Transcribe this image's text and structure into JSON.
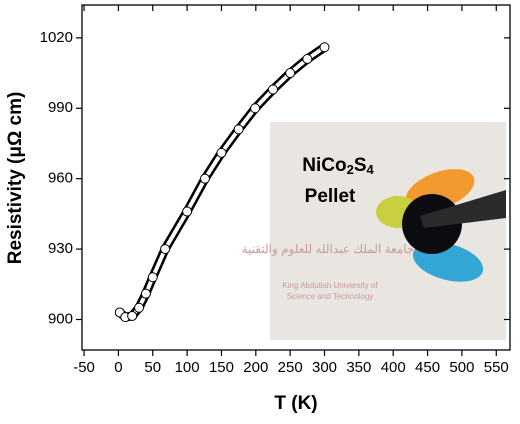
{
  "chart_data": {
    "type": "scatter",
    "x_label": "T (K)",
    "y_label": "Resistivity (μΩ cm)",
    "xlim": [
      -53,
      570
    ],
    "ylim": [
      887,
      1034
    ],
    "xticks": [
      -50,
      0,
      50,
      100,
      150,
      200,
      250,
      300,
      350,
      400,
      450,
      500,
      550
    ],
    "yticks": [
      900,
      930,
      960,
      990,
      1020
    ],
    "series": [
      {
        "color": "#000000",
        "x": [
          2,
          10,
          20,
          30,
          40,
          50,
          68,
          100,
          126,
          150,
          175,
          199,
          225,
          250,
          275,
          300
        ],
        "values": [
          903,
          901,
          901.5,
          905,
          911,
          918,
          930,
          946,
          960,
          971,
          981,
          990,
          998,
          1005,
          1011,
          1016
        ]
      }
    ]
  },
  "inset": {
    "formula_parts": [
      "NiCo",
      "2",
      "S",
      "4"
    ],
    "caption": "Pellet",
    "logo_arabic": "جامعة الملك عبدالله للعلوم والتقنية",
    "logo_english": [
      "King Abdullah University of",
      "Science and Technology"
    ]
  }
}
